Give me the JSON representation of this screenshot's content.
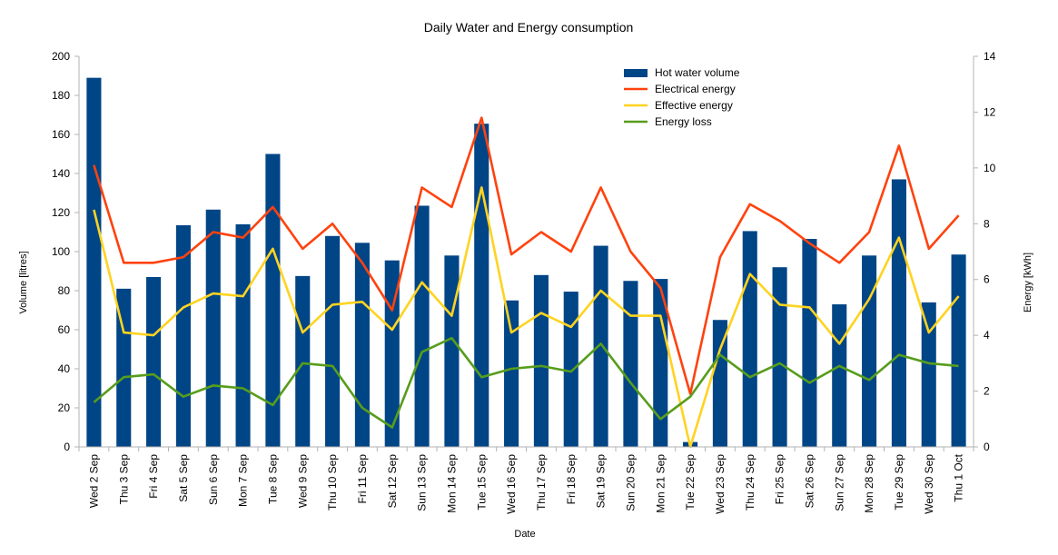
{
  "chart_data": {
    "type": "bar",
    "title": "Daily Water and Energy consumption",
    "xlabel": "Date",
    "ylabel_left": "Volume [litres]",
    "ylabel_right": "Energy [kWh]",
    "ylim_left": [
      0,
      200
    ],
    "ylim_right": [
      0,
      14
    ],
    "yticks_left": [
      0,
      20,
      40,
      60,
      80,
      100,
      120,
      140,
      160,
      180,
      200
    ],
    "yticks_right": [
      0,
      2,
      4,
      6,
      8,
      10,
      12,
      14
    ],
    "grid": false,
    "legend_position": "top-right",
    "categories": [
      "Wed 2 Sep",
      "Thu 3 Sep",
      "Fri 4 Sep",
      "Sat 5 Sep",
      "Sun 6 Sep",
      "Mon 7 Sep",
      "Tue 8 Sep",
      "Wed 9 Sep",
      "Thu 10 Sep",
      "Fri 11 Sep",
      "Sat 12 Sep",
      "Sun 13 Sep",
      "Mon 14 Sep",
      "Tue 15 Sep",
      "Wed 16 Sep",
      "Thu 17 Sep",
      "Fri 18 Sep",
      "Sat 19 Sep",
      "Sun 20 Sep",
      "Mon 21 Sep",
      "Tue 22 Sep",
      "Wed 23 Sep",
      "Thu 24 Sep",
      "Fri 25 Sep",
      "Sat 26 Sep",
      "Sun 27 Sep",
      "Mon 28 Sep",
      "Tue 29 Sep",
      "Wed 30 Sep",
      "Thu 1 Oct"
    ],
    "series": [
      {
        "name": "Hot water volume",
        "type": "bar",
        "axis": "left",
        "color": "#004586",
        "values": [
          189,
          81,
          87,
          113.5,
          121.5,
          114,
          150,
          87.5,
          108,
          104.5,
          95.5,
          123.5,
          98,
          165.5,
          75,
          88,
          79.5,
          103,
          85,
          86,
          2.5,
          65,
          110.5,
          92,
          106.5,
          73,
          98,
          137,
          74,
          98.5
        ]
      },
      {
        "name": "Electrical energy",
        "type": "line",
        "axis": "right",
        "color": "#ff420e",
        "values": [
          10.1,
          6.6,
          6.6,
          6.8,
          7.7,
          7.5,
          8.6,
          7.1,
          8.0,
          6.6,
          4.9,
          9.3,
          8.6,
          11.8,
          6.9,
          7.7,
          7.0,
          9.3,
          7.0,
          5.7,
          1.9,
          6.8,
          8.7,
          8.1,
          7.3,
          6.6,
          7.7,
          10.8,
          7.1,
          8.3
        ]
      },
      {
        "name": "Effective energy",
        "type": "line",
        "axis": "right",
        "color": "#ffd320",
        "values": [
          8.5,
          4.1,
          4.0,
          5.0,
          5.5,
          5.4,
          7.1,
          4.1,
          5.1,
          5.2,
          4.2,
          5.9,
          4.7,
          9.3,
          4.1,
          4.8,
          4.3,
          5.6,
          4.7,
          4.7,
          0.0,
          3.5,
          6.2,
          5.1,
          5.0,
          3.7,
          5.3,
          7.5,
          4.1,
          5.4
        ]
      },
      {
        "name": "Energy loss",
        "type": "line",
        "axis": "right",
        "color": "#579d1c",
        "values": [
          1.6,
          2.5,
          2.6,
          1.8,
          2.2,
          2.1,
          1.5,
          3.0,
          2.9,
          1.4,
          0.7,
          3.4,
          3.9,
          2.5,
          2.8,
          2.9,
          2.7,
          3.7,
          2.3,
          1.0,
          1.8,
          3.3,
          2.5,
          3.0,
          2.3,
          2.9,
          2.4,
          3.3,
          3.0,
          2.9
        ]
      }
    ]
  }
}
